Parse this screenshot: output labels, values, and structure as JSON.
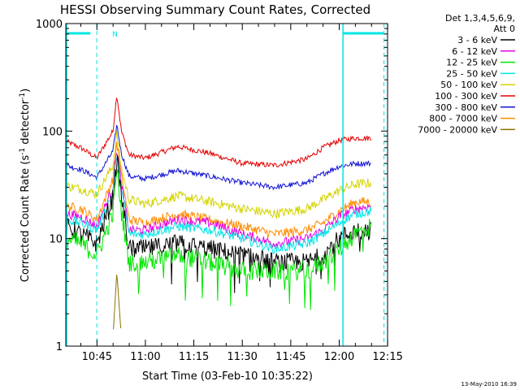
{
  "chart_data": {
    "type": "line",
    "title": "HESSI Observing Summary Count Rates, Corrected",
    "xlabel": "Start Time (03-Feb-10 10:35:22)",
    "ylabel_main": "Corrected Count Rate (s",
    "ylabel_sup1": "-1",
    "ylabel_mid": " detector",
    "ylabel_sup2": "-1",
    "ylabel_end": ")",
    "yscale": "log",
    "ylim": [
      1,
      1000
    ],
    "xlim": [
      "10:35:22",
      "12:15"
    ],
    "x_ticks": [
      "10:45",
      "11:00",
      "11:15",
      "11:30",
      "11:45",
      "12:00",
      "12:15"
    ],
    "y_ticks": [
      "1",
      "10",
      "100",
      "1000"
    ],
    "grid": false,
    "legend_header": [
      "Det 1,3,4,5,6,9,",
      "Att 0"
    ],
    "legend_position": "right",
    "footer_date": "13-May-2010 16:39",
    "night_marker": "N",
    "colors": {
      "axis": "#000000",
      "bar": "#00e5e5"
    },
    "bands": [
      {
        "name": "3 - 6 keV",
        "color": "#000000"
      },
      {
        "name": "6 - 12 keV",
        "color": "#e600e6"
      },
      {
        "name": "12 - 25 keV",
        "color": "#00e600"
      },
      {
        "name": "25 - 50 keV",
        "color": "#00e5e5"
      },
      {
        "name": "50 - 100 keV",
        "color": "#d4d400"
      },
      {
        "name": "100 - 300 keV",
        "color": "#e60000"
      },
      {
        "name": "300 - 800 keV",
        "color": "#1414d4"
      },
      {
        "name": "800 - 7000 keV",
        "color": "#ff8c00"
      },
      {
        "name": "7000 - 20000 keV",
        "color": "#8b7300"
      }
    ],
    "x_minutes": [
      0,
      4.6,
      9.6,
      14.6,
      15.8,
      17.2,
      19.6,
      24.6,
      34.6,
      44.6,
      54.6,
      64.6,
      74.6,
      79.6,
      84.6,
      89.6,
      94.6,
      99.6
    ],
    "series": [
      {
        "band": "100 - 300 keV",
        "values": [
          80,
          70,
          56,
          100,
          220,
          100,
          60,
          56,
          72,
          62,
          50,
          48,
          55,
          70,
          82,
          86,
          86,
          null
        ]
      },
      {
        "band": "300 - 800 keV",
        "values": [
          48,
          44,
          37,
          65,
          115,
          62,
          38,
          36,
          43,
          38,
          33,
          30,
          33,
          40,
          47,
          50,
          50,
          null
        ]
      },
      {
        "band": "50 - 100 keV",
        "values": [
          31,
          29,
          26,
          48,
          95,
          45,
          23,
          21,
          25,
          22,
          19,
          17,
          19,
          23,
          28,
          32,
          33,
          null
        ]
      },
      {
        "band": "800 - 7000 keV",
        "values": [
          20,
          19,
          15,
          36,
          80,
          38,
          15,
          14,
          17,
          15,
          13,
          11,
          12,
          14,
          18,
          22,
          22,
          null
        ]
      },
      {
        "band": "6 - 12 keV",
        "values": [
          17,
          16,
          13,
          30,
          70,
          32,
          12,
          12,
          15,
          14,
          11,
          9,
          10,
          12,
          16,
          19,
          20,
          null
        ]
      },
      {
        "band": "25 - 50 keV",
        "values": [
          15,
          14,
          12,
          27,
          62,
          29,
          11,
          11,
          13,
          12,
          10,
          8,
          9,
          11,
          14,
          17,
          18,
          null
        ]
      },
      {
        "band": "3 - 6 keV",
        "values": [
          13,
          11,
          9,
          24,
          55,
          25,
          8,
          8,
          9,
          8,
          7,
          6,
          6,
          7,
          10,
          12,
          12,
          null
        ]
      },
      {
        "band": "12 - 25 keV",
        "values": [
          10,
          9,
          7,
          17,
          45,
          18,
          6,
          6,
          7,
          6,
          5,
          5,
          5,
          6,
          8,
          11,
          13,
          null
        ]
      },
      {
        "band": "7000 - 20000 keV",
        "values": [
          null,
          null,
          null,
          1.2,
          4.9,
          1.2,
          null,
          null,
          null,
          null,
          null,
          null,
          null,
          null,
          null,
          null,
          null,
          null
        ]
      }
    ]
  }
}
